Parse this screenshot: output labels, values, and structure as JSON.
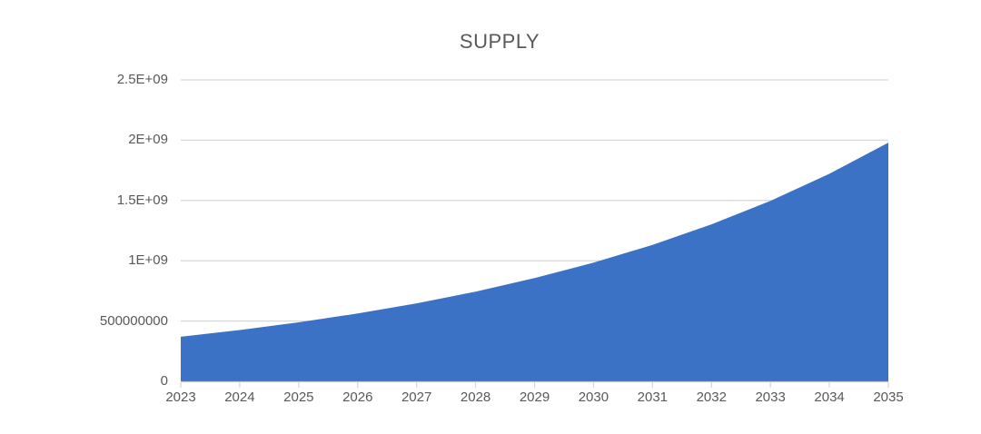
{
  "title": "SUPPLY",
  "colors": {
    "area_fill": "#3B72C6",
    "gridline": "#D9D9D9",
    "axis_line": "#C6C6C6",
    "tick_mark": "#D9D9D9",
    "label_text": "#595959",
    "title_text": "#595959",
    "background": "#FFFFFF"
  },
  "chart_data": {
    "type": "area",
    "title": "SUPPLY",
    "xlabel": "",
    "ylabel": "",
    "categories": [
      2023,
      2024,
      2025,
      2026,
      2027,
      2028,
      2029,
      2030,
      2031,
      2032,
      2033,
      2034,
      2035
    ],
    "series": [
      {
        "name": "SUPPLY",
        "values": [
          370000000,
          425500000,
          489300000,
          562700000,
          647100000,
          744200000,
          855800000,
          984200000,
          1131800000,
          1301600000,
          1496900000,
          1721400000,
          1979600000
        ]
      }
    ],
    "ylim": [
      0,
      2500000000
    ],
    "ytick_values": [
      0,
      500000000,
      1000000000,
      1500000000,
      2000000000,
      2500000000
    ],
    "ytick_labels": [
      "0",
      "500000000",
      "1E+09",
      "1.5E+09",
      "2E+09",
      "2.5E+09"
    ],
    "grid": "horizontal",
    "legend": "none"
  }
}
